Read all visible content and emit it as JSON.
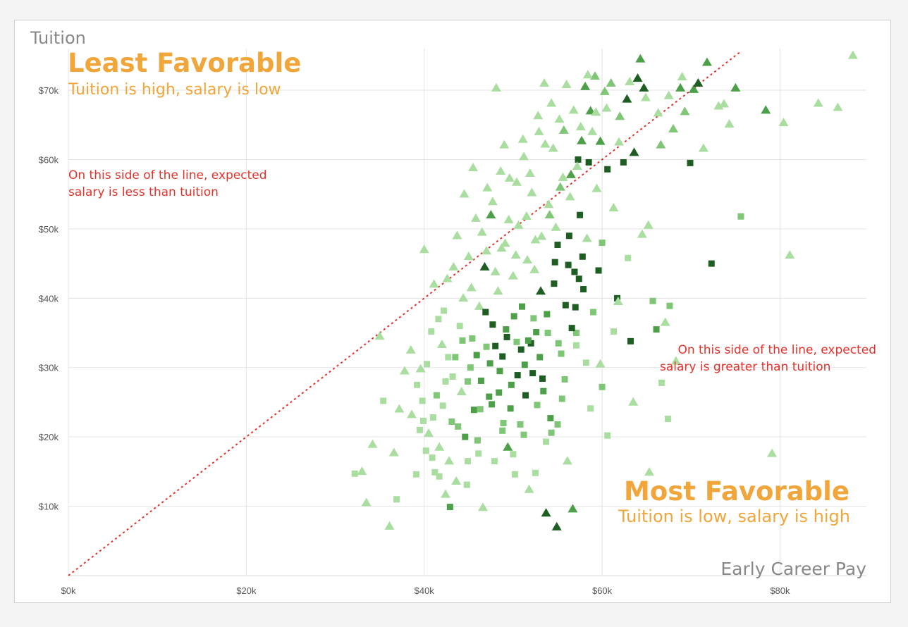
{
  "chart_data": {
    "type": "scatter",
    "title": "",
    "xlabel": "Early Career Pay",
    "ylabel": "Tuition",
    "xlim": [
      0,
      89000
    ],
    "ylim": [
      0,
      76000
    ],
    "x_ticks": [
      0,
      20000,
      40000,
      60000,
      80000
    ],
    "y_ticks": [
      10000,
      20000,
      30000,
      40000,
      50000,
      60000,
      70000
    ],
    "x_tick_labels": [
      "$0k",
      "$20k",
      "$40k",
      "$60k",
      "$80k"
    ],
    "y_tick_labels": [
      "$10k",
      "$20k",
      "$30k",
      "$40k",
      "$50k",
      "$60k",
      "$70k"
    ],
    "grid": true,
    "reference_line": {
      "x": [
        0,
        75500
      ],
      "y": [
        0,
        75500
      ],
      "style": "dotted",
      "color": "#e0332b"
    },
    "annotations": {
      "least_title": "Least Favorable",
      "least_sub": "Tuition is high, salary is low",
      "most_title": "Most Favorable",
      "most_sub": "Tuition is low, salary is high",
      "left_note_1": "On this side of the line, expected",
      "left_note_2": "salary is less than tuition",
      "right_note_1": "On this side of the line, expected",
      "right_note_2": "salary is greater than tuition"
    },
    "colors": {
      "lightest": "#a9dea0",
      "light": "#7fc676",
      "medium": "#4e9f49",
      "dark": "#1f5e22",
      "line": "#e0332b",
      "label": "#f0a63a"
    },
    "marker_shapes": [
      "triangle",
      "square"
    ],
    "points": [
      [
        32200,
        14700,
        "s",
        0
      ],
      [
        33000,
        15000,
        "t",
        0
      ],
      [
        33500,
        10500,
        "t",
        0
      ],
      [
        34200,
        18900,
        "t",
        0
      ],
      [
        35000,
        34500,
        "t",
        0
      ],
      [
        35400,
        25200,
        "s",
        0
      ],
      [
        36100,
        7100,
        "t",
        0
      ],
      [
        36600,
        17700,
        "t",
        0
      ],
      [
        36900,
        11000,
        "s",
        0
      ],
      [
        37200,
        24000,
        "t",
        0
      ],
      [
        37800,
        29500,
        "t",
        0
      ],
      [
        38600,
        23200,
        "t",
        0
      ],
      [
        39100,
        14600,
        "s",
        0
      ],
      [
        39600,
        29800,
        "t",
        0
      ],
      [
        39800,
        25200,
        "s",
        0
      ],
      [
        40000,
        47000,
        "t",
        0
      ],
      [
        40300,
        30500,
        "s",
        0
      ],
      [
        40500,
        20500,
        "t",
        0
      ],
      [
        40800,
        35200,
        "s",
        0
      ],
      [
        41000,
        22800,
        "s",
        0
      ],
      [
        41200,
        14900,
        "s",
        0
      ],
      [
        41400,
        26000,
        "s",
        1
      ],
      [
        41700,
        18500,
        "t",
        0
      ],
      [
        42000,
        33300,
        "t",
        0
      ],
      [
        42200,
        38200,
        "s",
        0
      ],
      [
        42400,
        28000,
        "s",
        0
      ],
      [
        42600,
        42800,
        "t",
        0
      ],
      [
        42800,
        16500,
        "t",
        0
      ],
      [
        42900,
        9900,
        "s",
        2
      ],
      [
        43100,
        22200,
        "s",
        1
      ],
      [
        43300,
        44500,
        "t",
        0
      ],
      [
        43500,
        31500,
        "s",
        1
      ],
      [
        43700,
        49000,
        "t",
        0
      ],
      [
        44000,
        36000,
        "s",
        0
      ],
      [
        44200,
        26500,
        "t",
        0
      ],
      [
        44400,
        40000,
        "t",
        0
      ],
      [
        44600,
        20000,
        "s",
        2
      ],
      [
        44800,
        13100,
        "s",
        0
      ],
      [
        45000,
        46000,
        "t",
        0
      ],
      [
        45200,
        30000,
        "s",
        1
      ],
      [
        45400,
        34200,
        "s",
        1
      ],
      [
        45600,
        23900,
        "s",
        2
      ],
      [
        45800,
        51500,
        "t",
        0
      ],
      [
        46000,
        19500,
        "s",
        1
      ],
      [
        46200,
        38800,
        "t",
        0
      ],
      [
        46400,
        28100,
        "s",
        2
      ],
      [
        46600,
        9800,
        "t",
        0
      ],
      [
        46800,
        44500,
        "t",
        3
      ],
      [
        47000,
        33000,
        "s",
        1
      ],
      [
        47100,
        55900,
        "t",
        0
      ],
      [
        47300,
        25800,
        "s",
        2
      ],
      [
        47500,
        52000,
        "t",
        2
      ],
      [
        47700,
        36200,
        "s",
        3
      ],
      [
        47900,
        16500,
        "s",
        0
      ],
      [
        48100,
        70300,
        "t",
        0
      ],
      [
        48300,
        41000,
        "t",
        0
      ],
      [
        48500,
        29500,
        "s",
        2
      ],
      [
        48700,
        47200,
        "t",
        0
      ],
      [
        48900,
        22000,
        "s",
        1
      ],
      [
        49000,
        62100,
        "t",
        0
      ],
      [
        49200,
        35500,
        "s",
        2
      ],
      [
        49400,
        18500,
        "t",
        2
      ],
      [
        49600,
        57300,
        "t",
        0
      ],
      [
        49800,
        27500,
        "s",
        2
      ],
      [
        50000,
        43200,
        "t",
        0
      ],
      [
        50200,
        14600,
        "s",
        0
      ],
      [
        50400,
        33700,
        "s",
        1
      ],
      [
        50600,
        50500,
        "t",
        0
      ],
      [
        50800,
        21800,
        "s",
        1
      ],
      [
        51000,
        38800,
        "s",
        2
      ],
      [
        51200,
        60400,
        "t",
        0
      ],
      [
        51400,
        26000,
        "s",
        3
      ],
      [
        51600,
        45500,
        "t",
        0
      ],
      [
        51800,
        12400,
        "t",
        0
      ],
      [
        52000,
        33500,
        "s",
        3
      ],
      [
        52100,
        55200,
        "t",
        0
      ],
      [
        52300,
        37100,
        "s",
        1
      ],
      [
        52500,
        48400,
        "t",
        0
      ],
      [
        52700,
        24600,
        "s",
        1
      ],
      [
        52900,
        64000,
        "t",
        0
      ],
      [
        53100,
        41000,
        "t",
        3
      ],
      [
        53300,
        28400,
        "s",
        3
      ],
      [
        53500,
        71000,
        "t",
        0
      ],
      [
        53700,
        9000,
        "t",
        3
      ],
      [
        53900,
        35000,
        "s",
        1
      ],
      [
        54100,
        52000,
        "t",
        1
      ],
      [
        54300,
        20600,
        "s",
        1
      ],
      [
        54500,
        61600,
        "t",
        0
      ],
      [
        54700,
        45200,
        "s",
        3
      ],
      [
        54900,
        7000,
        "t",
        3
      ],
      [
        55100,
        33500,
        "s",
        1
      ],
      [
        55300,
        56000,
        "t",
        1
      ],
      [
        55500,
        25500,
        "s",
        1
      ],
      [
        55700,
        64200,
        "t",
        1
      ],
      [
        55900,
        39000,
        "s",
        3
      ],
      [
        56100,
        16500,
        "t",
        0
      ],
      [
        56300,
        49000,
        "s",
        3
      ],
      [
        56500,
        57800,
        "t",
        2
      ],
      [
        56700,
        9600,
        "t",
        2
      ],
      [
        56900,
        43800,
        "s",
        3
      ],
      [
        57100,
        35000,
        "s",
        1
      ],
      [
        57300,
        60000,
        "s",
        3
      ],
      [
        57500,
        52000,
        "s",
        3
      ],
      [
        57700,
        62700,
        "t",
        2
      ],
      [
        57900,
        41300,
        "s",
        3
      ],
      [
        58100,
        70500,
        "t",
        2
      ],
      [
        58300,
        48600,
        "t",
        0
      ],
      [
        58500,
        59600,
        "s",
        3
      ],
      [
        58700,
        67000,
        "t",
        2
      ],
      [
        59000,
        38000,
        "s",
        1
      ],
      [
        59200,
        72000,
        "t",
        1
      ],
      [
        59400,
        55800,
        "t",
        0
      ],
      [
        59600,
        44000,
        "s",
        3
      ],
      [
        59800,
        62600,
        "t",
        2
      ],
      [
        60000,
        48000,
        "s",
        1
      ],
      [
        60300,
        69800,
        "t",
        1
      ],
      [
        60600,
        58600,
        "s",
        3
      ],
      [
        61000,
        71000,
        "t",
        1
      ],
      [
        61300,
        53000,
        "t",
        0
      ],
      [
        61700,
        40000,
        "s",
        3
      ],
      [
        62000,
        66200,
        "t",
        1
      ],
      [
        62400,
        59600,
        "s",
        3
      ],
      [
        62800,
        68700,
        "t",
        3
      ],
      [
        63200,
        33800,
        "s",
        3
      ],
      [
        63600,
        61000,
        "t",
        3
      ],
      [
        64000,
        71700,
        "t",
        3
      ],
      [
        64300,
        74500,
        "t",
        2
      ],
      [
        64700,
        70300,
        "t",
        3
      ],
      [
        65200,
        50500,
        "t",
        0
      ],
      [
        65700,
        39600,
        "s",
        1
      ],
      [
        66100,
        35500,
        "s",
        2
      ],
      [
        66600,
        62100,
        "t",
        1
      ],
      [
        67100,
        36500,
        "t",
        0
      ],
      [
        67600,
        38900,
        "s",
        1
      ],
      [
        68000,
        64400,
        "t",
        1
      ],
      [
        68300,
        30900,
        "t",
        0
      ],
      [
        68800,
        70300,
        "t",
        2
      ],
      [
        69300,
        66900,
        "t",
        1
      ],
      [
        69900,
        59500,
        "s",
        3
      ],
      [
        70300,
        70100,
        "t",
        2
      ],
      [
        70800,
        71000,
        "t",
        3
      ],
      [
        71400,
        61600,
        "t",
        0
      ],
      [
        71800,
        74000,
        "t",
        2
      ],
      [
        72300,
        45000,
        "s",
        3
      ],
      [
        73100,
        67700,
        "t",
        0
      ],
      [
        73700,
        68000,
        "t",
        0
      ],
      [
        74300,
        65100,
        "t",
        0
      ],
      [
        75000,
        70300,
        "t",
        2
      ],
      [
        75600,
        51800,
        "s",
        1
      ],
      [
        78400,
        67100,
        "t",
        2
      ],
      [
        79100,
        17600,
        "t",
        0
      ],
      [
        80400,
        65300,
        "t",
        0
      ],
      [
        81100,
        46200,
        "t",
        0
      ],
      [
        84300,
        68100,
        "t",
        0
      ],
      [
        86500,
        67500,
        "t",
        0
      ],
      [
        88200,
        75000,
        "t",
        0
      ],
      [
        38500,
        32500,
        "t",
        0
      ],
      [
        39200,
        27500,
        "s",
        0
      ],
      [
        39500,
        21000,
        "s",
        0
      ],
      [
        40200,
        18000,
        "s",
        0
      ],
      [
        41100,
        42000,
        "t",
        0
      ],
      [
        41600,
        37000,
        "s",
        0
      ],
      [
        42100,
        24500,
        "s",
        0
      ],
      [
        42700,
        31500,
        "s",
        0
      ],
      [
        43200,
        28700,
        "s",
        0
      ],
      [
        43800,
        21500,
        "s",
        1
      ],
      [
        44300,
        33900,
        "s",
        1
      ],
      [
        44900,
        28000,
        "s",
        1
      ],
      [
        45300,
        41500,
        "t",
        0
      ],
      [
        45900,
        31800,
        "s",
        2
      ],
      [
        46300,
        24000,
        "s",
        1
      ],
      [
        46900,
        38000,
        "s",
        3
      ],
      [
        47400,
        30600,
        "s",
        2
      ],
      [
        48000,
        33100,
        "s",
        3
      ],
      [
        48400,
        26400,
        "s",
        2
      ],
      [
        48800,
        31600,
        "s",
        3
      ],
      [
        49300,
        34400,
        "s",
        3
      ],
      [
        49700,
        24100,
        "s",
        2
      ],
      [
        50100,
        37400,
        "s",
        2
      ],
      [
        50500,
        28900,
        "s",
        3
      ],
      [
        50900,
        32600,
        "s",
        3
      ],
      [
        51300,
        30400,
        "s",
        2
      ],
      [
        51700,
        33900,
        "s",
        2
      ],
      [
        52200,
        29200,
        "s",
        3
      ],
      [
        52600,
        35100,
        "s",
        2
      ],
      [
        53000,
        31500,
        "s",
        2
      ],
      [
        53400,
        26600,
        "s",
        2
      ],
      [
        53800,
        37700,
        "s",
        2
      ],
      [
        54200,
        22700,
        "s",
        2
      ],
      [
        54600,
        42100,
        "s",
        3
      ],
      [
        55000,
        47700,
        "s",
        3
      ],
      [
        55400,
        32000,
        "s",
        1
      ],
      [
        55800,
        28300,
        "s",
        1
      ],
      [
        56200,
        44800,
        "s",
        3
      ],
      [
        56600,
        35700,
        "s",
        3
      ],
      [
        57000,
        38700,
        "s",
        3
      ],
      [
        57400,
        42800,
        "s",
        3
      ],
      [
        57800,
        46000,
        "s",
        3
      ],
      [
        44500,
        55000,
        "t",
        0
      ],
      [
        45500,
        58800,
        "t",
        0
      ],
      [
        46500,
        49500,
        "t",
        0
      ],
      [
        47700,
        53900,
        "t",
        0
      ],
      [
        48600,
        58300,
        "t",
        0
      ],
      [
        49500,
        51300,
        "t",
        0
      ],
      [
        50400,
        56700,
        "t",
        0
      ],
      [
        51100,
        62900,
        "t",
        0
      ],
      [
        51900,
        58000,
        "t",
        0
      ],
      [
        52800,
        66300,
        "t",
        0
      ],
      [
        53600,
        62200,
        "t",
        0
      ],
      [
        54300,
        68100,
        "t",
        0
      ],
      [
        55200,
        65800,
        "t",
        0
      ],
      [
        56000,
        70800,
        "t",
        0
      ],
      [
        56800,
        67100,
        "t",
        0
      ],
      [
        57600,
        64700,
        "t",
        0
      ],
      [
        58400,
        72200,
        "t",
        0
      ],
      [
        59300,
        66800,
        "t",
        0
      ],
      [
        47000,
        46800,
        "t",
        0
      ],
      [
        48000,
        43800,
        "t",
        0
      ],
      [
        49100,
        47900,
        "t",
        0
      ],
      [
        50300,
        46200,
        "t",
        0
      ],
      [
        51500,
        51800,
        "t",
        0
      ],
      [
        52400,
        44100,
        "t",
        0
      ],
      [
        53200,
        48900,
        "t",
        0
      ],
      [
        54000,
        53500,
        "t",
        0
      ],
      [
        54800,
        50200,
        "t",
        0
      ],
      [
        55600,
        57400,
        "t",
        0
      ],
      [
        56400,
        54600,
        "t",
        0
      ],
      [
        57200,
        59000,
        "t",
        0
      ],
      [
        58900,
        64000,
        "t",
        0
      ],
      [
        60500,
        67400,
        "t",
        0
      ],
      [
        61900,
        62500,
        "t",
        0
      ],
      [
        63100,
        71200,
        "t",
        0
      ],
      [
        64900,
        68900,
        "t",
        0
      ],
      [
        66300,
        66700,
        "t",
        0
      ],
      [
        67500,
        69200,
        "t",
        0
      ],
      [
        69000,
        71900,
        "t",
        0
      ],
      [
        60000,
        27200,
        "s",
        1
      ],
      [
        58200,
        30700,
        "s",
        0
      ],
      [
        57100,
        33200,
        "s",
        0
      ],
      [
        58700,
        24100,
        "s",
        0
      ],
      [
        60600,
        20200,
        "s",
        0
      ],
      [
        61800,
        39500,
        "t",
        0
      ],
      [
        63500,
        25000,
        "t",
        0
      ],
      [
        65300,
        14900,
        "t",
        0
      ],
      [
        66700,
        27800,
        "s",
        0
      ],
      [
        67400,
        22600,
        "s",
        0
      ],
      [
        64500,
        49200,
        "t",
        0
      ],
      [
        62900,
        45800,
        "s",
        0
      ],
      [
        61300,
        35200,
        "s",
        0
      ],
      [
        59800,
        30500,
        "t",
        0
      ],
      [
        55000,
        21800,
        "s",
        1
      ],
      [
        53700,
        19300,
        "s",
        0
      ],
      [
        52500,
        14800,
        "s",
        0
      ],
      [
        51200,
        20300,
        "s",
        1
      ],
      [
        50000,
        17500,
        "s",
        0
      ],
      [
        48800,
        20900,
        "s",
        1
      ],
      [
        47600,
        24700,
        "s",
        2
      ],
      [
        46100,
        17600,
        "s",
        0
      ],
      [
        44900,
        16500,
        "s",
        0
      ],
      [
        43600,
        13600,
        "t",
        0
      ],
      [
        42400,
        11700,
        "t",
        0
      ],
      [
        41700,
        14300,
        "s",
        0
      ],
      [
        40900,
        17000,
        "s",
        0
      ],
      [
        39900,
        22300,
        "s",
        0
      ]
    ]
  }
}
